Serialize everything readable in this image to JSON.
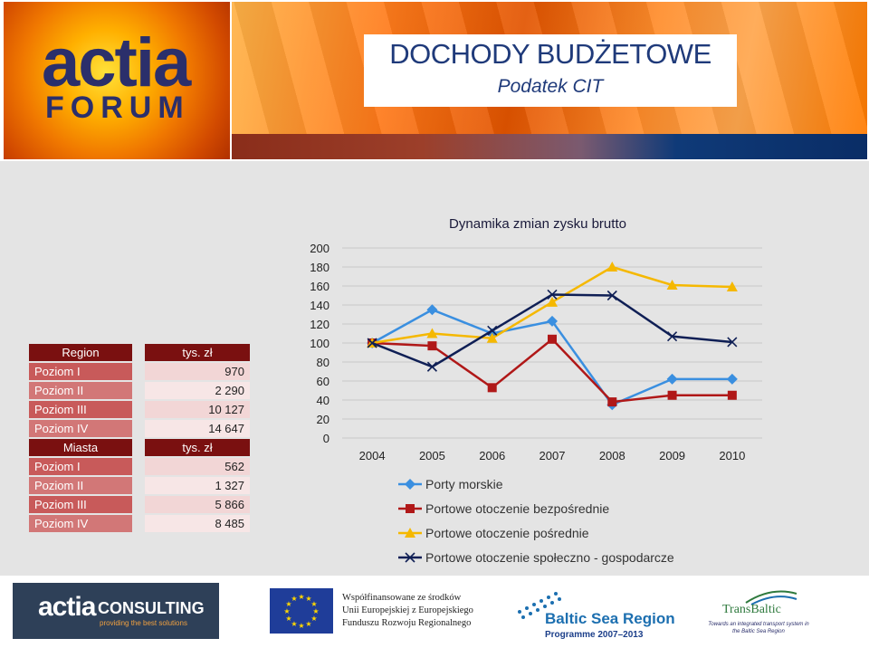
{
  "header": {
    "title": "DOCHODY BUDŻETOWE",
    "subtitle": "Podatek CIT",
    "logo_main": "actia",
    "logo_sub": "FORUM"
  },
  "table": {
    "section1_header": [
      "Region",
      "tys. zł"
    ],
    "section1_rows": [
      {
        "label": "Poziom I",
        "value": "970"
      },
      {
        "label": "Poziom II",
        "value": "2 290"
      },
      {
        "label": "Poziom III",
        "value": "10 127"
      },
      {
        "label": "Poziom IV",
        "value": "14 647"
      }
    ],
    "section2_header": [
      "Miasta",
      "tys. zł"
    ],
    "section2_rows": [
      {
        "label": "Poziom I",
        "value": "562"
      },
      {
        "label": "Poziom II",
        "value": "1 327"
      },
      {
        "label": "Poziom III",
        "value": "5 866"
      },
      {
        "label": "Poziom IV",
        "value": "8 485"
      }
    ]
  },
  "footer": {
    "actia_consulting": "actia",
    "consulting_word": "CONSULTING",
    "consulting_tagline": "providing the best solutions",
    "eu_text_lines": [
      "Współfinansowane ze środków",
      "Unii Europejskiej z Europejskiego",
      "Funduszu Rozwoju Regionalnego"
    ],
    "bsr_title": "Baltic Sea Region",
    "bsr_programme": "Programme 2007–2013",
    "transbaltic_title": "TransBaltic",
    "transbaltic_sub": "Towards an integrated transport system in the Baltic Sea Region"
  },
  "chart_data": {
    "type": "line",
    "title": "Dynamika zmian zysku brutto",
    "x": [
      "2004",
      "2005",
      "2006",
      "2007",
      "2008",
      "2009",
      "2010"
    ],
    "ylim": [
      0,
      200
    ],
    "yticks": [
      0,
      20,
      40,
      60,
      80,
      100,
      120,
      140,
      160,
      180,
      200
    ],
    "grid": true,
    "legend_position": "bottom",
    "series": [
      {
        "name": "Porty morskie",
        "marker": "diamond",
        "color": "#3a8fe0",
        "values": [
          100,
          135,
          110,
          123,
          35,
          62,
          62
        ]
      },
      {
        "name": "Portowe otoczenie bezpośrednie",
        "marker": "square",
        "color": "#b01818",
        "values": [
          100,
          97,
          53,
          104,
          38,
          45,
          45
        ]
      },
      {
        "name": "Portowe otoczenie pośrednie",
        "marker": "triangle",
        "color": "#f5b800",
        "values": [
          100,
          110,
          105,
          143,
          180,
          161,
          159
        ]
      },
      {
        "name": "Portowe otoczenie społeczno - gospodarcze",
        "marker": "x",
        "color": "#0f1f55",
        "values": [
          100,
          75,
          113,
          151,
          150,
          107,
          101
        ]
      }
    ]
  }
}
